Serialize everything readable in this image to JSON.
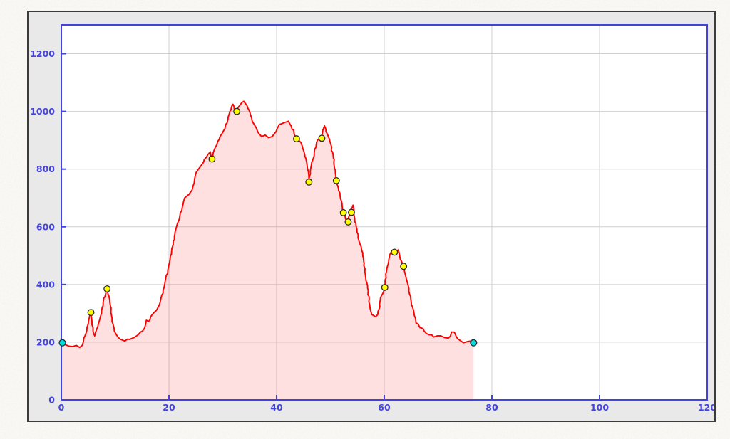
{
  "window": {
    "page_background": "#f1eee8",
    "panel_background": "#e9e9e9",
    "panel_border": "#3b3b3b"
  },
  "chart_data": {
    "type": "area",
    "title": "",
    "xlabel": "",
    "ylabel": "",
    "xlim": [
      0,
      120
    ],
    "ylim": [
      0,
      1300
    ],
    "x_ticks": [
      0,
      20,
      40,
      60,
      80,
      100,
      120
    ],
    "y_ticks": [
      0,
      200,
      400,
      600,
      800,
      1000,
      1200
    ],
    "grid": true,
    "legend": "none",
    "colors": {
      "axis_border": "#4242e0",
      "tick": "#4242e0",
      "tick_label": "#4343dd",
      "gridline": "#cfcfcf",
      "line": "#ff0000",
      "fill": "rgba(255,0,0,0.12)",
      "plot_background": "#ffffff",
      "waypoint_fill": "#ffff00",
      "endpoint_fill": "#00dcdc",
      "marker_outline": "#2a2a2a"
    },
    "series": [
      {
        "name": "elevation-profile",
        "points": [
          [
            0,
            198
          ],
          [
            0.8,
            191
          ],
          [
            1.5,
            186
          ],
          [
            2.1,
            185
          ],
          [
            2.8,
            189
          ],
          [
            3.4,
            182
          ],
          [
            3.9,
            189
          ],
          [
            4.1,
            202
          ],
          [
            4.4,
            222
          ],
          [
            5,
            263
          ],
          [
            5.3,
            295
          ],
          [
            5.5,
            303
          ],
          [
            5.7,
            272
          ],
          [
            6,
            230
          ],
          [
            6.2,
            222
          ],
          [
            6.8,
            255
          ],
          [
            7.2,
            284
          ],
          [
            7.6,
            321
          ],
          [
            8.1,
            358
          ],
          [
            8.5,
            385
          ],
          [
            9,
            346
          ],
          [
            9.3,
            296
          ],
          [
            9.6,
            263
          ],
          [
            10.1,
            230
          ],
          [
            10.5,
            218
          ],
          [
            11,
            210
          ],
          [
            11.8,
            204
          ],
          [
            12.7,
            210
          ],
          [
            13.4,
            215
          ],
          [
            14,
            222
          ],
          [
            14.7,
            235
          ],
          [
            15.4,
            247
          ],
          [
            15.8,
            276
          ],
          [
            16.2,
            272
          ],
          [
            16.9,
            296
          ],
          [
            17.6,
            309
          ],
          [
            18.2,
            329
          ],
          [
            18.9,
            370
          ],
          [
            19.3,
            412
          ],
          [
            19.8,
            452
          ],
          [
            20.2,
            486
          ],
          [
            20.8,
            540
          ],
          [
            21.3,
            593
          ],
          [
            22,
            635
          ],
          [
            22.4,
            658
          ],
          [
            22.9,
            700
          ],
          [
            23.7,
            712
          ],
          [
            24.3,
            728
          ],
          [
            25.1,
            790
          ],
          [
            25.8,
            808
          ],
          [
            26.4,
            823
          ],
          [
            27.2,
            850
          ],
          [
            27.7,
            860
          ],
          [
            28,
            838
          ],
          [
            28.6,
            875
          ],
          [
            29.5,
            913
          ],
          [
            30.2,
            935
          ],
          [
            30.8,
            960
          ],
          [
            31.3,
            1000
          ],
          [
            31.9,
            1025
          ],
          [
            32.3,
            996
          ],
          [
            32.6,
            1000
          ],
          [
            33.2,
            1022
          ],
          [
            33.9,
            1035
          ],
          [
            34.5,
            1020
          ],
          [
            35.2,
            985
          ],
          [
            35.7,
            959
          ],
          [
            36.6,
            926
          ],
          [
            37.2,
            913
          ],
          [
            37.9,
            918
          ],
          [
            38.5,
            909
          ],
          [
            39.2,
            913
          ],
          [
            39.9,
            930
          ],
          [
            40.5,
            955
          ],
          [
            41.4,
            961
          ],
          [
            42.2,
            966
          ],
          [
            42.7,
            950
          ],
          [
            43.7,
            905
          ],
          [
            44.5,
            893
          ],
          [
            45.2,
            852
          ],
          [
            45.8,
            798
          ],
          [
            46,
            765
          ],
          [
            46.7,
            831
          ],
          [
            47.6,
            901
          ],
          [
            48.4,
            907
          ],
          [
            48.6,
            935
          ],
          [
            48.9,
            950
          ],
          [
            49.8,
            905
          ],
          [
            50.5,
            848
          ],
          [
            51.1,
            760
          ],
          [
            51.8,
            708
          ],
          [
            52.2,
            670
          ],
          [
            52.4,
            650
          ],
          [
            52.8,
            628
          ],
          [
            53.2,
            616
          ],
          [
            53.6,
            648
          ],
          [
            54,
            665
          ],
          [
            54.2,
            675
          ],
          [
            54.5,
            630
          ],
          [
            54.8,
            600
          ],
          [
            55.3,
            551
          ],
          [
            56,
            510
          ],
          [
            56.4,
            444
          ],
          [
            56.9,
            387
          ],
          [
            57.3,
            329
          ],
          [
            57.7,
            296
          ],
          [
            58.4,
            288
          ],
          [
            58.8,
            296
          ],
          [
            59.5,
            362
          ],
          [
            60.1,
            390
          ],
          [
            60.4,
            444
          ],
          [
            61,
            502
          ],
          [
            61.5,
            518
          ],
          [
            61.9,
            522
          ],
          [
            62.3,
            514
          ],
          [
            62.6,
            520
          ],
          [
            63.2,
            481
          ],
          [
            63.6,
            463
          ],
          [
            63.9,
            436
          ],
          [
            64.4,
            400
          ],
          [
            65,
            340
          ],
          [
            65.4,
            313
          ],
          [
            65.9,
            267
          ],
          [
            66.6,
            251
          ],
          [
            67.2,
            247
          ],
          [
            67.4,
            239
          ],
          [
            68.3,
            226
          ],
          [
            69.2,
            218
          ],
          [
            70.5,
            222
          ],
          [
            71.2,
            216
          ],
          [
            71.9,
            214
          ],
          [
            72.5,
            235
          ],
          [
            73,
            235
          ],
          [
            73.4,
            218
          ],
          [
            74.1,
            206
          ],
          [
            74.7,
            198
          ],
          [
            75.4,
            202
          ],
          [
            76.6,
            198
          ]
        ]
      }
    ],
    "waypoints": [
      [
        5.5,
        303
      ],
      [
        8.5,
        385
      ],
      [
        28,
        835
      ],
      [
        32.6,
        1000
      ],
      [
        43.7,
        905
      ],
      [
        46,
        755
      ],
      [
        48.4,
        907
      ],
      [
        51.1,
        760
      ],
      [
        52.4,
        649
      ],
      [
        53.3,
        617
      ],
      [
        53.9,
        650
      ],
      [
        60.1,
        390
      ],
      [
        61.9,
        512
      ],
      [
        63.6,
        463
      ]
    ],
    "endpoints": [
      [
        0.2,
        198
      ],
      [
        76.6,
        198
      ]
    ]
  }
}
